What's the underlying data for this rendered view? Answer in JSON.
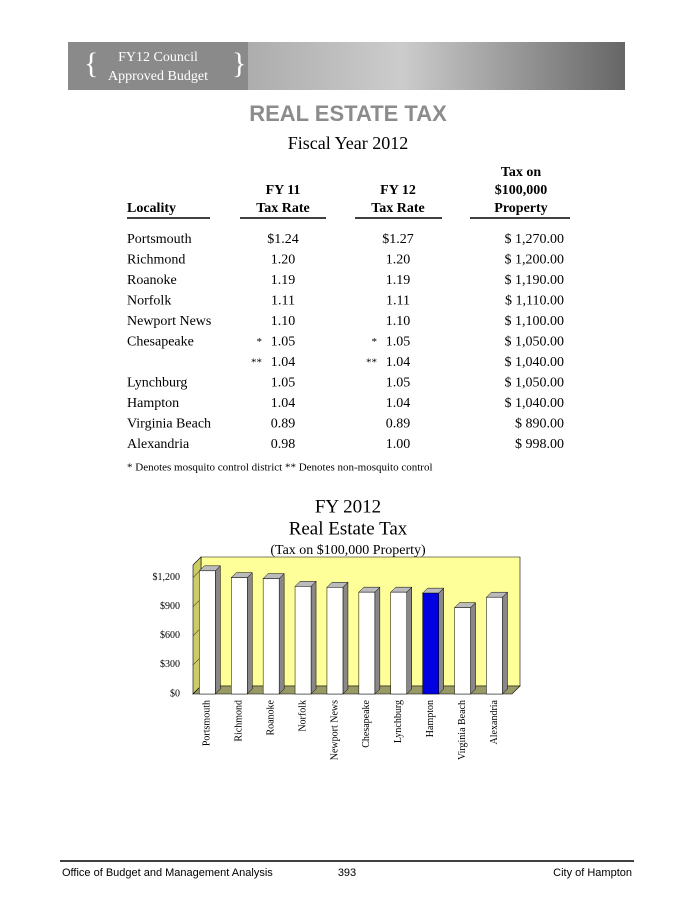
{
  "header": {
    "banner": [
      "FY12 Council",
      "Approved Budget"
    ]
  },
  "title": "REAL ESTATE TAX",
  "subtitle": "Fiscal Year 2012",
  "table": {
    "columns": [
      "Locality",
      [
        "FY 11",
        "Tax Rate"
      ],
      [
        "FY 12",
        "Tax Rate"
      ],
      [
        "Tax on",
        "$100,000",
        "Property"
      ]
    ],
    "rows": [
      {
        "locality": "Portsmouth",
        "fy11": "$1.24",
        "fy12": "$1.27",
        "tax": "$ 1,270.00"
      },
      {
        "locality": "Richmond",
        "fy11": "1.20",
        "fy12": "1.20",
        "tax": "$ 1,200.00"
      },
      {
        "locality": "Roanoke",
        "fy11": "1.19",
        "fy12": "1.19",
        "tax": "$ 1,190.00"
      },
      {
        "locality": "Norfolk",
        "fy11": "1.11",
        "fy12": "1.11",
        "tax": "$ 1,110.00"
      },
      {
        "locality": "Newport News",
        "fy11": "1.10",
        "fy12": "1.10",
        "tax": "$ 1,100.00"
      },
      {
        "locality": "Chesapeake",
        "fy11_mark": "*",
        "fy11": "1.05",
        "fy12_mark": "*",
        "fy12": "1.05",
        "tax": "$ 1,050.00"
      },
      {
        "fy11_mark": "**",
        "fy11": "1.04",
        "fy12_mark": "**",
        "fy12": "1.04",
        "tax": "$ 1,040.00"
      },
      {
        "locality": "Lynchburg",
        "fy11": "1.05",
        "fy12": "1.05",
        "tax": "$ 1,050.00"
      },
      {
        "locality": "Hampton",
        "fy11": "1.04",
        "fy12": "1.04",
        "tax": "$ 1,040.00"
      },
      {
        "locality": "Virginia Beach",
        "fy11": "0.89",
        "fy12": "0.89",
        "tax": "$ 890.00"
      },
      {
        "locality": "Alexandria",
        "fy11": "0.98",
        "fy12": "1.00",
        "tax": "$ 998.00"
      }
    ]
  },
  "footnote": "* Denotes mosquito control district  ** Denotes non-mosquito control",
  "chart_data": {
    "type": "bar",
    "title": [
      "FY 2012",
      "Real Estate Tax"
    ],
    "subtitle": "(Tax on $100,000 Property)",
    "categories": [
      "Portsmouth",
      "Richmond",
      "Roanoke",
      "Norfolk",
      "Newport News",
      "Chesapeake",
      "Lynchburg",
      "Hampton",
      "Virginia Beach",
      "Alexandria"
    ],
    "values": [
      1270,
      1200,
      1190,
      1110,
      1100,
      1050,
      1050,
      1040,
      890,
      998
    ],
    "colors": [
      "#ffffff",
      "#ffffff",
      "#ffffff",
      "#ffffff",
      "#ffffff",
      "#ffffff",
      "#ffffff",
      "#0000e0",
      "#ffffff",
      "#ffffff"
    ],
    "ylim": [
      0,
      1330
    ],
    "yticks": [
      {
        "value": 0,
        "label": "$0"
      },
      {
        "value": 300,
        "label": "$300"
      },
      {
        "value": 600,
        "label": "$600"
      },
      {
        "value": 900,
        "label": "$900"
      },
      {
        "value": 1200,
        "label": "$1,200"
      }
    ],
    "background": "#ffff99"
  },
  "footer": {
    "left": "Office of Budget and Management Analysis",
    "page": "393",
    "right": "City of Hampton"
  }
}
